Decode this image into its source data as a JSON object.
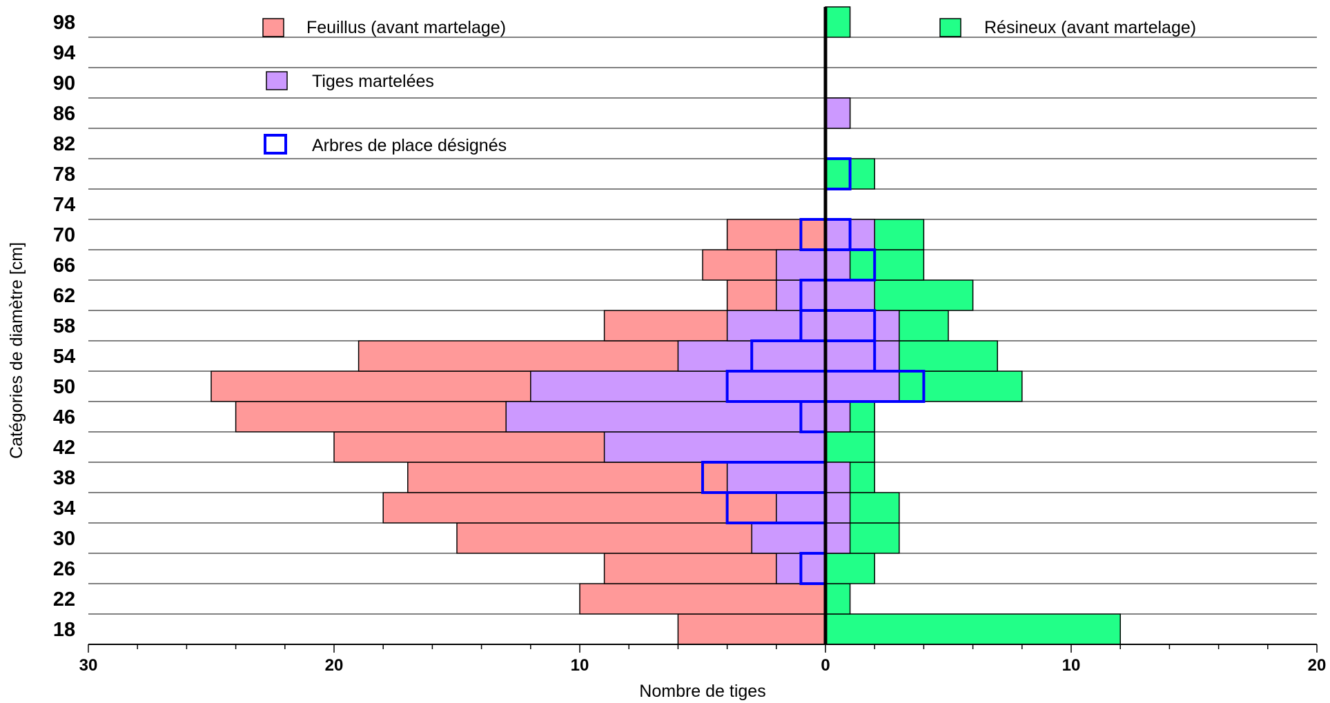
{
  "chart_data": {
    "type": "bar",
    "orientation": "horizontal",
    "ylabel": "Catégories de diamètre [cm]",
    "xlabel": "Nombre de tiges",
    "categories": [
      "18",
      "22",
      "26",
      "30",
      "34",
      "38",
      "42",
      "46",
      "50",
      "54",
      "58",
      "62",
      "66",
      "70",
      "74",
      "78",
      "82",
      "86",
      "90",
      "94",
      "98"
    ],
    "xlim": [
      -30,
      20
    ],
    "xticks": [
      {
        "value": -30,
        "label": "30"
      },
      {
        "value": -20,
        "label": "20"
      },
      {
        "value": -10,
        "label": "10"
      },
      {
        "value": 0,
        "label": "0"
      },
      {
        "value": 10,
        "label": "10"
      },
      {
        "value": 20,
        "label": "20"
      }
    ],
    "minor_tick_step": 2,
    "grid": "horizontal",
    "feuillus_side": "left",
    "resineux_side": "right",
    "series": [
      {
        "name": "Feuillus (avant martelage)",
        "side": "left",
        "color": "#ff9999",
        "values": [
          6,
          10,
          9,
          15,
          18,
          17,
          20,
          24,
          25,
          19,
          9,
          4,
          5,
          4,
          0,
          0,
          0,
          0,
          0,
          0,
          0
        ]
      },
      {
        "name": "Résineux (avant martelage)",
        "side": "right",
        "color": "#22ff88",
        "values": [
          12,
          1,
          2,
          3,
          3,
          2,
          2,
          2,
          8,
          7,
          5,
          6,
          4,
          4,
          0,
          2,
          0,
          1,
          0,
          0,
          1
        ]
      },
      {
        "name": "Tiges martelées",
        "color": "#cc99ff",
        "left_values": [
          0,
          0,
          2,
          3,
          2,
          4,
          9,
          13,
          12,
          6,
          4,
          2,
          2,
          0,
          0,
          0,
          0,
          0,
          0,
          0,
          0
        ],
        "right_values": [
          0,
          0,
          0,
          1,
          1,
          1,
          0,
          1,
          3,
          3,
          3,
          2,
          1,
          2,
          0,
          0,
          0,
          1,
          0,
          0,
          0
        ]
      },
      {
        "name": "Arbres de place désignés",
        "color": "#0000ff",
        "left_values": [
          0,
          0,
          1,
          0,
          4,
          5,
          0,
          1,
          4,
          3,
          1,
          1,
          0,
          1,
          0,
          0,
          0,
          0,
          0,
          0,
          0
        ],
        "right_values": [
          0,
          0,
          0,
          0,
          0,
          0,
          0,
          0,
          4,
          2,
          2,
          0,
          2,
          1,
          0,
          1,
          0,
          0,
          0,
          0,
          0
        ]
      }
    ]
  },
  "legend": {
    "feuillus": "Feuillus (avant martelage)",
    "resineux": "Résineux (avant martelage)",
    "martelees": "Tiges martelées",
    "arbres_place": "Arbres de place désignés"
  }
}
